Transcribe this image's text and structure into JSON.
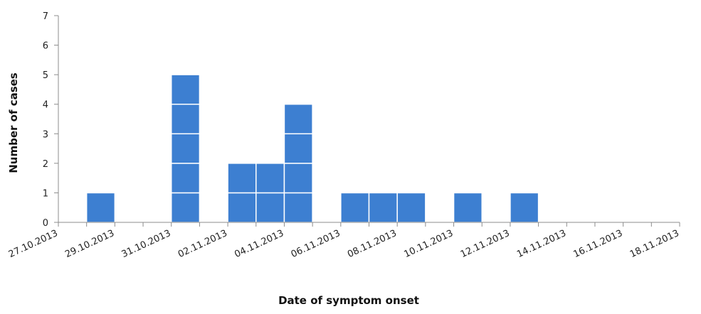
{
  "chart_data": {
    "type": "bar",
    "title": "",
    "xlabel": "Date of symptom onset",
    "ylabel": "Number of cases",
    "ylim": [
      0,
      7
    ],
    "yticks": [
      0,
      1,
      2,
      3,
      4,
      5,
      6,
      7
    ],
    "dates": [
      "27.10.2013",
      "28.10.2013",
      "29.10.2013",
      "30.10.2013",
      "31.10.2013",
      "01.11.2013",
      "02.11.2013",
      "03.11.2013",
      "04.11.2013",
      "05.11.2013",
      "06.11.2013",
      "07.11.2013",
      "08.11.2013",
      "09.11.2013",
      "10.11.2013",
      "11.11.2013",
      "12.11.2013",
      "13.11.2013",
      "14.11.2013",
      "15.11.2013",
      "16.11.2013",
      "17.11.2013"
    ],
    "values": [
      0,
      1,
      0,
      0,
      5,
      0,
      2,
      2,
      4,
      0,
      1,
      1,
      1,
      0,
      1,
      0,
      1,
      0,
      0,
      0,
      0,
      0
    ],
    "tick_labels": [
      "27.10.2013",
      "29.10.2013",
      "31.10.2013",
      "02.11.2013",
      "04.11.2013",
      "06.11.2013",
      "08.11.2013",
      "10.11.2013",
      "12.11.2013",
      "14.11.2013",
      "16.11.2013",
      "18.11.2013"
    ],
    "bar_color": "#3d7fd1",
    "bar_separator_color": "#ffffff",
    "axis_color": "#8c8c8c",
    "grid": false,
    "legend": "none"
  }
}
